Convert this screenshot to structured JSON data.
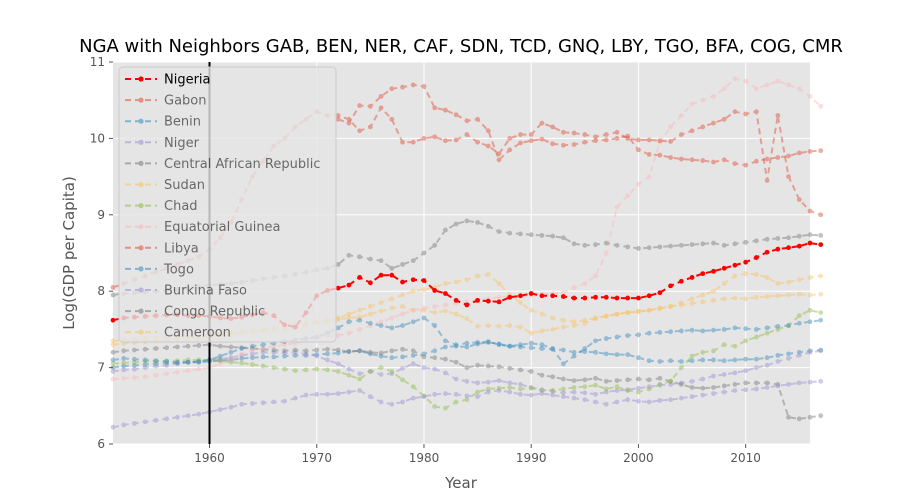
{
  "chart_data": {
    "type": "line",
    "title": "NGA with Neighbors GAB, BEN, NER, CAF, SDN, TCD, GNQ, LBY, TGO, BFA, COG, CMR",
    "xlabel": "Year",
    "ylabel": "Log(GDP per Capita)",
    "xlim": [
      1951,
      2016
    ],
    "ylim": [
      6,
      11
    ],
    "xticks": [
      1960,
      1970,
      1980,
      1990,
      2000,
      2010
    ],
    "yticks": [
      6,
      7,
      8,
      9,
      10,
      11
    ],
    "grid": true,
    "legend_position": "top-left",
    "vline_x": 1960,
    "colors": {
      "background": "#e5e5e5",
      "grid": "#ffffff",
      "vline": "#000000",
      "highlight": "#ff0000",
      "palette": [
        "#e24a33",
        "#348abd",
        "#988ed5",
        "#777777",
        "#fbc15e",
        "#8eba42",
        "#ffb5b8"
      ]
    },
    "years_start": 1951,
    "series": [
      {
        "name": "Nigeria",
        "color": "#ff0000",
        "highlight": true,
        "values": [
          7.62,
          7.65,
          7.66,
          7.67,
          7.68,
          7.69,
          7.69,
          7.68,
          7.68,
          7.67,
          7.65,
          7.64,
          7.66,
          7.69,
          7.72,
          7.68,
          7.56,
          7.53,
          7.72,
          7.94,
          8.01,
          8.04,
          8.08,
          8.18,
          8.11,
          8.21,
          8.21,
          8.12,
          8.15,
          8.14,
          8.01,
          7.97,
          7.88,
          7.82,
          7.88,
          7.87,
          7.86,
          7.92,
          7.94,
          7.97,
          7.94,
          7.94,
          7.93,
          7.91,
          7.91,
          7.92,
          7.92,
          7.91,
          7.91,
          7.91,
          7.94,
          7.98,
          8.07,
          8.13,
          8.18,
          8.23,
          8.26,
          8.3,
          8.34,
          8.38,
          8.44,
          8.51,
          8.55,
          8.57,
          8.59,
          8.63,
          8.61
        ]
      },
      {
        "name": "Gabon",
        "color": "#e24a33",
        "values": [
          null,
          null,
          null,
          null,
          null,
          null,
          null,
          null,
          null,
          null,
          null,
          null,
          null,
          null,
          null,
          null,
          null,
          null,
          null,
          null,
          null,
          10.25,
          10.2,
          10.43,
          10.42,
          10.55,
          10.65,
          10.67,
          10.7,
          10.68,
          10.4,
          10.37,
          10.31,
          10.23,
          10.25,
          10.1,
          9.72,
          9.85,
          9.94,
          9.97,
          9.99,
          9.93,
          9.91,
          9.92,
          9.95,
          9.97,
          9.98,
          10.0,
          10.03,
          9.85,
          9.79,
          9.78,
          9.75,
          9.73,
          9.72,
          9.71,
          9.69,
          9.72,
          9.67,
          9.65,
          9.7,
          9.73,
          9.75,
          9.77,
          9.81,
          9.83,
          9.84
        ]
      },
      {
        "name": "Benin",
        "color": "#348abd",
        "values": [
          7.0,
          7.02,
          7.03,
          7.04,
          7.05,
          7.06,
          7.06,
          7.07,
          7.07,
          7.08,
          7.09,
          7.1,
          7.12,
          7.13,
          7.14,
          7.14,
          7.15,
          7.16,
          7.16,
          7.17,
          7.18,
          7.19,
          7.21,
          7.22,
          7.18,
          7.15,
          7.13,
          7.14,
          7.16,
          7.18,
          7.22,
          7.27,
          7.28,
          7.27,
          7.31,
          7.33,
          7.31,
          7.28,
          7.27,
          7.26,
          7.25,
          7.24,
          7.23,
          7.2,
          7.21,
          7.2,
          7.18,
          7.17,
          7.17,
          7.13,
          7.09,
          7.08,
          7.09,
          7.08,
          7.09,
          7.1,
          7.1,
          7.09,
          7.1,
          7.11,
          7.11,
          7.13,
          7.16,
          7.18,
          7.2,
          7.22,
          7.23
        ]
      },
      {
        "name": "Niger",
        "color": "#988ed5",
        "values": [
          6.95,
          6.97,
          6.98,
          7.0,
          7.02,
          7.03,
          7.05,
          7.07,
          7.08,
          7.1,
          7.11,
          7.13,
          7.16,
          7.18,
          7.2,
          7.2,
          7.19,
          7.2,
          7.18,
          7.15,
          7.1,
          7.05,
          6.98,
          6.92,
          6.95,
          6.91,
          6.92,
          6.99,
          7.05,
          7.0,
          6.98,
          6.93,
          6.85,
          6.82,
          6.8,
          6.81,
          6.83,
          6.8,
          6.78,
          6.74,
          6.71,
          6.69,
          6.67,
          6.68,
          6.67,
          6.65,
          6.68,
          6.7,
          6.71,
          6.73,
          6.75,
          6.77,
          6.78,
          6.8,
          6.82,
          6.85,
          6.89,
          6.91,
          6.93,
          6.96,
          7.0,
          7.03,
          7.08,
          7.12,
          7.16,
          7.2,
          7.22
        ]
      },
      {
        "name": "Central African Republic",
        "color": "#777777",
        "values": [
          7.2,
          7.22,
          7.23,
          7.24,
          7.25,
          7.26,
          7.27,
          7.28,
          7.29,
          7.3,
          7.28,
          7.27,
          7.26,
          7.25,
          7.24,
          7.23,
          7.22,
          7.23,
          7.22,
          7.23,
          7.24,
          7.23,
          7.21,
          7.22,
          7.2,
          7.19,
          7.22,
          7.24,
          7.22,
          7.14,
          7.13,
          7.11,
          7.07,
          7.0,
          7.03,
          7.02,
          7.01,
          6.99,
          6.97,
          6.95,
          6.9,
          6.88,
          6.85,
          6.83,
          6.84,
          6.86,
          6.82,
          6.83,
          6.84,
          6.85,
          6.84,
          6.86,
          6.82,
          6.78,
          6.74,
          6.73,
          6.74,
          6.76,
          6.78,
          6.8,
          6.8,
          6.8,
          6.78,
          6.35,
          6.33,
          6.35,
          6.37
        ]
      },
      {
        "name": "Sudan",
        "color": "#fbc15e",
        "values": [
          7.35,
          7.36,
          7.37,
          7.38,
          7.39,
          7.4,
          7.41,
          7.42,
          7.42,
          7.43,
          7.44,
          7.45,
          7.46,
          7.47,
          7.48,
          7.49,
          7.5,
          7.52,
          7.55,
          7.58,
          7.6,
          7.63,
          7.65,
          7.66,
          7.7,
          7.74,
          7.78,
          7.8,
          7.75,
          7.75,
          7.72,
          7.74,
          7.7,
          7.64,
          7.54,
          7.55,
          7.54,
          7.55,
          7.53,
          7.45,
          7.48,
          7.5,
          7.53,
          7.55,
          7.58,
          7.64,
          7.67,
          7.7,
          7.72,
          7.73,
          7.75,
          7.78,
          7.8,
          7.82,
          7.84,
          7.86,
          7.88,
          7.9,
          7.91,
          7.9,
          7.92,
          7.93,
          7.94,
          7.95,
          7.96,
          7.95,
          7.96
        ]
      },
      {
        "name": "Chad",
        "color": "#8eba42",
        "values": [
          7.05,
          7.06,
          7.07,
          7.08,
          7.08,
          7.09,
          7.09,
          7.1,
          7.1,
          7.1,
          7.09,
          7.07,
          7.06,
          7.04,
          7.02,
          7.0,
          6.98,
          6.96,
          6.97,
          6.98,
          6.97,
          6.95,
          6.9,
          6.85,
          6.95,
          7.0,
          6.95,
          6.84,
          6.75,
          6.63,
          6.49,
          6.47,
          6.55,
          6.58,
          6.68,
          6.72,
          6.73,
          6.74,
          6.72,
          6.73,
          6.7,
          6.7,
          6.72,
          6.74,
          6.75,
          6.77,
          6.72,
          6.75,
          6.7,
          6.68,
          6.72,
          6.78,
          6.82,
          7.0,
          7.15,
          7.2,
          7.22,
          7.3,
          7.28,
          7.35,
          7.4,
          7.45,
          7.5,
          7.55,
          7.68,
          7.75,
          7.72
        ]
      },
      {
        "name": "Equatorial Guinea",
        "color": "#ffb5b8",
        "values": [
          6.85,
          6.86,
          6.87,
          6.88,
          6.9,
          6.92,
          6.94,
          6.96,
          6.98,
          7.0,
          7.05,
          7.1,
          7.18,
          7.22,
          7.25,
          7.28,
          7.3,
          7.32,
          7.35,
          7.38,
          7.4,
          7.42,
          7.45,
          7.5,
          7.55,
          7.6,
          7.65,
          7.7,
          7.75,
          7.78,
          7.8,
          7.82,
          7.84,
          7.86,
          7.88,
          7.9,
          7.92,
          7.93,
          7.94,
          7.95,
          7.96,
          7.97,
          7.98,
          8.05,
          8.1,
          8.2,
          8.5,
          9.1,
          9.25,
          9.4,
          9.5,
          9.95,
          10.15,
          10.3,
          10.45,
          10.5,
          10.55,
          10.65,
          10.78,
          10.75,
          10.65,
          10.7,
          10.75,
          10.7,
          10.65,
          10.55,
          10.42
        ]
      },
      {
        "name": "Libya",
        "color": "#e24a33",
        "values": [
          8.05,
          8.1,
          8.15,
          8.2,
          8.25,
          8.3,
          8.35,
          8.4,
          8.45,
          8.55,
          8.7,
          8.9,
          9.2,
          9.5,
          9.7,
          9.9,
          10.0,
          10.15,
          10.25,
          10.35,
          10.3,
          10.3,
          10.25,
          10.1,
          10.15,
          10.4,
          10.25,
          9.95,
          9.95,
          10.0,
          10.02,
          9.97,
          9.98,
          10.05,
          9.95,
          9.9,
          9.8,
          10.0,
          10.05,
          10.05,
          10.2,
          10.15,
          10.08,
          10.07,
          10.05,
          10.02,
          10.05,
          10.08,
          10.0,
          9.98,
          9.98,
          9.97,
          9.96,
          10.05,
          10.1,
          10.15,
          10.2,
          10.25,
          10.35,
          10.32,
          10.35,
          9.45,
          10.3,
          9.5,
          9.2,
          9.05,
          9.0
        ]
      },
      {
        "name": "Togo",
        "color": "#348abd",
        "values": [
          7.1,
          7.12,
          7.11,
          7.1,
          7.09,
          7.08,
          7.07,
          7.07,
          7.08,
          7.1,
          7.15,
          7.2,
          7.25,
          7.28,
          7.3,
          7.32,
          7.34,
          7.36,
          7.38,
          7.4,
          7.45,
          7.52,
          7.6,
          7.62,
          7.58,
          7.55,
          7.52,
          7.55,
          7.6,
          7.65,
          7.55,
          7.35,
          7.3,
          7.32,
          7.33,
          7.34,
          7.3,
          7.28,
          7.3,
          7.32,
          7.3,
          7.25,
          7.05,
          7.15,
          7.25,
          7.35,
          7.38,
          7.4,
          7.42,
          7.43,
          7.45,
          7.46,
          7.47,
          7.48,
          7.49,
          7.48,
          7.49,
          7.5,
          7.52,
          7.51,
          7.5,
          7.52,
          7.54,
          7.55,
          7.58,
          7.6,
          7.62
        ]
      },
      {
        "name": "Burkina Faso",
        "color": "#988ed5",
        "values": [
          6.22,
          6.25,
          6.27,
          6.29,
          6.31,
          6.33,
          6.35,
          6.37,
          6.39,
          6.42,
          6.45,
          6.48,
          6.52,
          6.53,
          6.54,
          6.55,
          6.56,
          6.6,
          6.64,
          6.65,
          6.65,
          6.66,
          6.68,
          6.7,
          6.62,
          6.55,
          6.52,
          6.55,
          6.6,
          6.62,
          6.65,
          6.66,
          6.65,
          6.63,
          6.62,
          6.68,
          6.7,
          6.68,
          6.65,
          6.64,
          6.66,
          6.64,
          6.62,
          6.6,
          6.58,
          6.55,
          6.52,
          6.55,
          6.58,
          6.56,
          6.55,
          6.57,
          6.58,
          6.6,
          6.62,
          6.64,
          6.66,
          6.68,
          6.7,
          6.71,
          6.72,
          6.74,
          6.76,
          6.78,
          6.8,
          6.81,
          6.82
        ]
      },
      {
        "name": "Congo Republic",
        "color": "#777777",
        "values": [
          7.95,
          7.97,
          7.98,
          7.99,
          8.0,
          8.01,
          8.02,
          8.04,
          8.06,
          8.08,
          8.09,
          8.1,
          8.12,
          8.14,
          8.16,
          8.18,
          8.2,
          8.22,
          8.25,
          8.28,
          8.3,
          8.35,
          8.47,
          8.45,
          8.42,
          8.4,
          8.3,
          8.35,
          8.4,
          8.5,
          8.6,
          8.8,
          8.88,
          8.92,
          8.9,
          8.85,
          8.78,
          8.76,
          8.75,
          8.74,
          8.73,
          8.72,
          8.7,
          8.62,
          8.6,
          8.61,
          8.63,
          8.6,
          8.58,
          8.56,
          8.57,
          8.58,
          8.59,
          8.6,
          8.61,
          8.62,
          8.63,
          8.6,
          8.62,
          8.64,
          8.66,
          8.68,
          8.69,
          8.7,
          8.72,
          8.74,
          8.73
        ]
      },
      {
        "name": "Cameroon",
        "color": "#fbc15e",
        "values": [
          7.3,
          7.32,
          7.33,
          7.34,
          7.35,
          7.36,
          7.37,
          7.38,
          7.39,
          7.4,
          7.42,
          7.44,
          7.46,
          7.48,
          7.5,
          7.52,
          7.54,
          7.56,
          7.58,
          7.6,
          7.62,
          7.65,
          7.7,
          7.75,
          7.8,
          7.85,
          7.9,
          7.95,
          8.0,
          8.02,
          8.05,
          8.1,
          8.12,
          8.15,
          8.2,
          8.22,
          8.1,
          7.95,
          7.85,
          7.75,
          7.7,
          7.65,
          7.62,
          7.6,
          7.62,
          7.65,
          7.68,
          7.7,
          7.72,
          7.74,
          7.75,
          7.77,
          7.8,
          7.85,
          7.9,
          7.95,
          8.0,
          8.1,
          8.2,
          8.23,
          8.22,
          8.18,
          8.1,
          8.12,
          8.15,
          8.18,
          8.2
        ]
      }
    ]
  }
}
